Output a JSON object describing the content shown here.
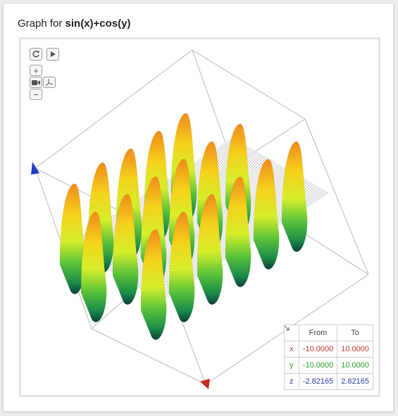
{
  "header": {
    "title_prefix": "Graph for",
    "function": "sin(x)+cos(y)"
  },
  "controls": {
    "reset_icon": "reset-icon",
    "play_icon": "play-icon",
    "zoom_in_label": "+",
    "zoom_out_label": "−",
    "camera_icon": "camera-icon",
    "axes_icon": "axes-icon"
  },
  "range_table": {
    "corner_icon": "diagonal-arrow-icon",
    "headers": [
      "From",
      "To"
    ],
    "rows": [
      {
        "axis": "x",
        "from": "-10.0000",
        "to": "10.0000",
        "color": "#c0392b"
      },
      {
        "axis": "y",
        "from": "-10.0000",
        "to": "10.0000",
        "color": "#2aa32a"
      },
      {
        "axis": "z",
        "from": "-2.82165",
        "to": "2.82165",
        "color": "#2b3aa3"
      }
    ]
  },
  "colors": {
    "peak": "#f08a1c",
    "mid": "#f2e81a",
    "low": "#3cb83c",
    "trough": "#0a4a3a",
    "axis_x": "#c62828",
    "axis_z": "#1e3cc8"
  }
}
